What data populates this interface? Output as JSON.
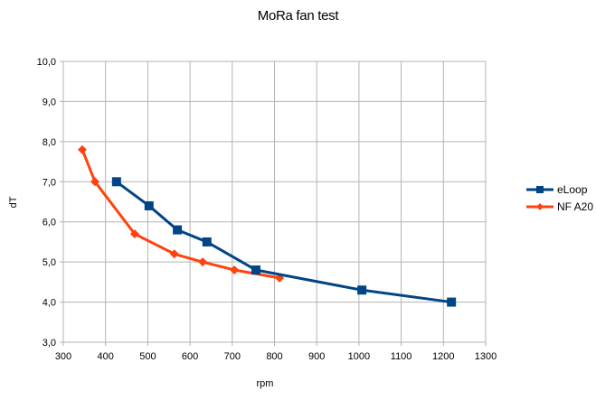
{
  "chart_data": {
    "type": "line",
    "title": "MoRa fan test",
    "xlabel": "rpm",
    "ylabel": "dT",
    "xlim": [
      300,
      1300
    ],
    "ylim": [
      3.0,
      10.0
    ],
    "x_ticks": [
      300,
      400,
      500,
      600,
      700,
      800,
      900,
      1000,
      1100,
      1200,
      1300
    ],
    "y_ticks": [
      "3,0",
      "4,0",
      "5,0",
      "6,0",
      "7,0",
      "8,0",
      "9,0",
      "10,0"
    ],
    "grid": true,
    "legend_position": "right",
    "series": [
      {
        "name": "eLoop",
        "color": "#004586",
        "marker": "square",
        "x": [
          426,
          503,
          570,
          640,
          756,
          1007,
          1219
        ],
        "y": [
          7.0,
          6.4,
          5.8,
          5.5,
          4.8,
          4.3,
          4.0
        ]
      },
      {
        "name": "NF A20",
        "color": "#ff420e",
        "marker": "diamond",
        "x": [
          345,
          375,
          469,
          563,
          630,
          705,
          812
        ],
        "y": [
          7.8,
          7.0,
          5.7,
          5.2,
          5.0,
          4.8,
          4.6
        ]
      }
    ]
  },
  "legend": {
    "items": [
      "eLoop",
      "NF A20"
    ]
  }
}
